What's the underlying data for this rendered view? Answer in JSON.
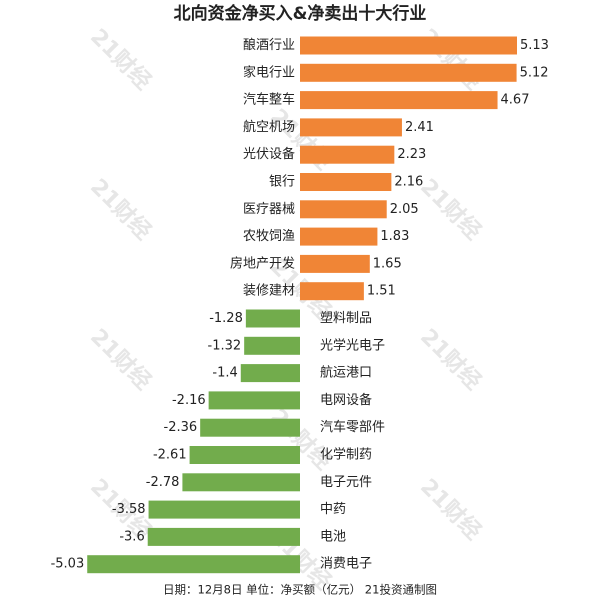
{
  "chart_data": {
    "type": "bar",
    "orientation": "horizontal",
    "title": "北向资金净买入&净卖出十大行业",
    "footer": "日期：12月8日 单位：净买额（亿元） 21投资通制图",
    "watermark": "21财经",
    "categories": [
      "酿酒行业",
      "家电行业",
      "汽车整车",
      "航空机场",
      "光伏设备",
      "银行",
      "医疗器械",
      "农牧饲渔",
      "房地产开发",
      "装修建材",
      "塑料制品",
      "光学光电子",
      "航运港口",
      "电网设备",
      "汽车零部件",
      "化学制药",
      "电子元件",
      "中药",
      "电池",
      "消费电子"
    ],
    "values": [
      5.13,
      5.12,
      4.67,
      2.41,
      2.23,
      2.16,
      2.05,
      1.83,
      1.65,
      1.51,
      -1.28,
      -1.32,
      -1.4,
      -2.16,
      -2.36,
      -2.61,
      -2.78,
      -3.58,
      -3.6,
      -5.03
    ],
    "positive_color": "#f08536",
    "negative_color": "#72ac4c"
  }
}
